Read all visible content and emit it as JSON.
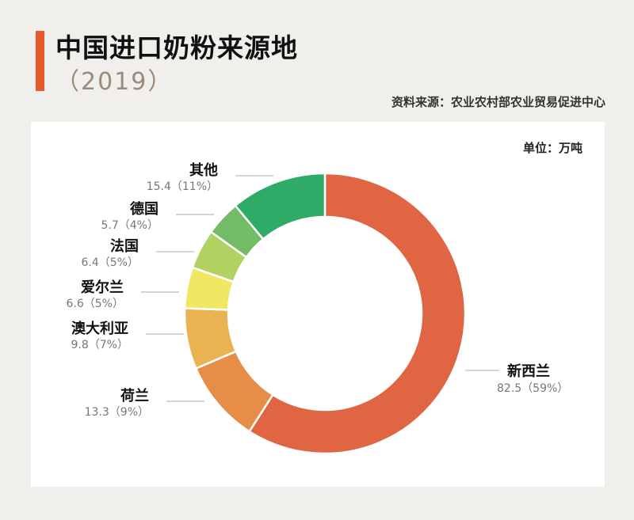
{
  "header": {
    "title": "中国进口奶粉来源地",
    "year": "（2019）",
    "source": "资料来源：农业农村部农业贸易促进中心"
  },
  "unit": "单位：万吨",
  "colors": {
    "accent": "#e8582b",
    "slices": [
      "#e06542",
      "#e68d48",
      "#ebb251",
      "#f1e762",
      "#b2d163",
      "#73bb66",
      "#2fab68"
    ]
  },
  "chart_data": {
    "type": "pie",
    "donut": true,
    "title": "中国进口奶粉来源地",
    "subtitle": "（2019）",
    "unit": "万吨",
    "slices": [
      {
        "name": "新西兰",
        "value": 82.5,
        "percent": "59%",
        "value_label": "82.5（59%）"
      },
      {
        "name": "荷兰",
        "value": 13.3,
        "percent": "9%",
        "value_label": "13.3（9%）"
      },
      {
        "name": "澳大利亚",
        "value": 9.8,
        "percent": "7%",
        "value_label": "9.8（7%）"
      },
      {
        "name": "爱尔兰",
        "value": 6.6,
        "percent": "5%",
        "value_label": "6.6（5%）"
      },
      {
        "name": "法国",
        "value": 6.4,
        "percent": "5%",
        "value_label": "6.4（5%）"
      },
      {
        "name": "德国",
        "value": 5.7,
        "percent": "4%",
        "value_label": "5.7（4%）"
      },
      {
        "name": "其他",
        "value": 15.4,
        "percent": "11%",
        "value_label": "15.4（11%）"
      }
    ]
  }
}
